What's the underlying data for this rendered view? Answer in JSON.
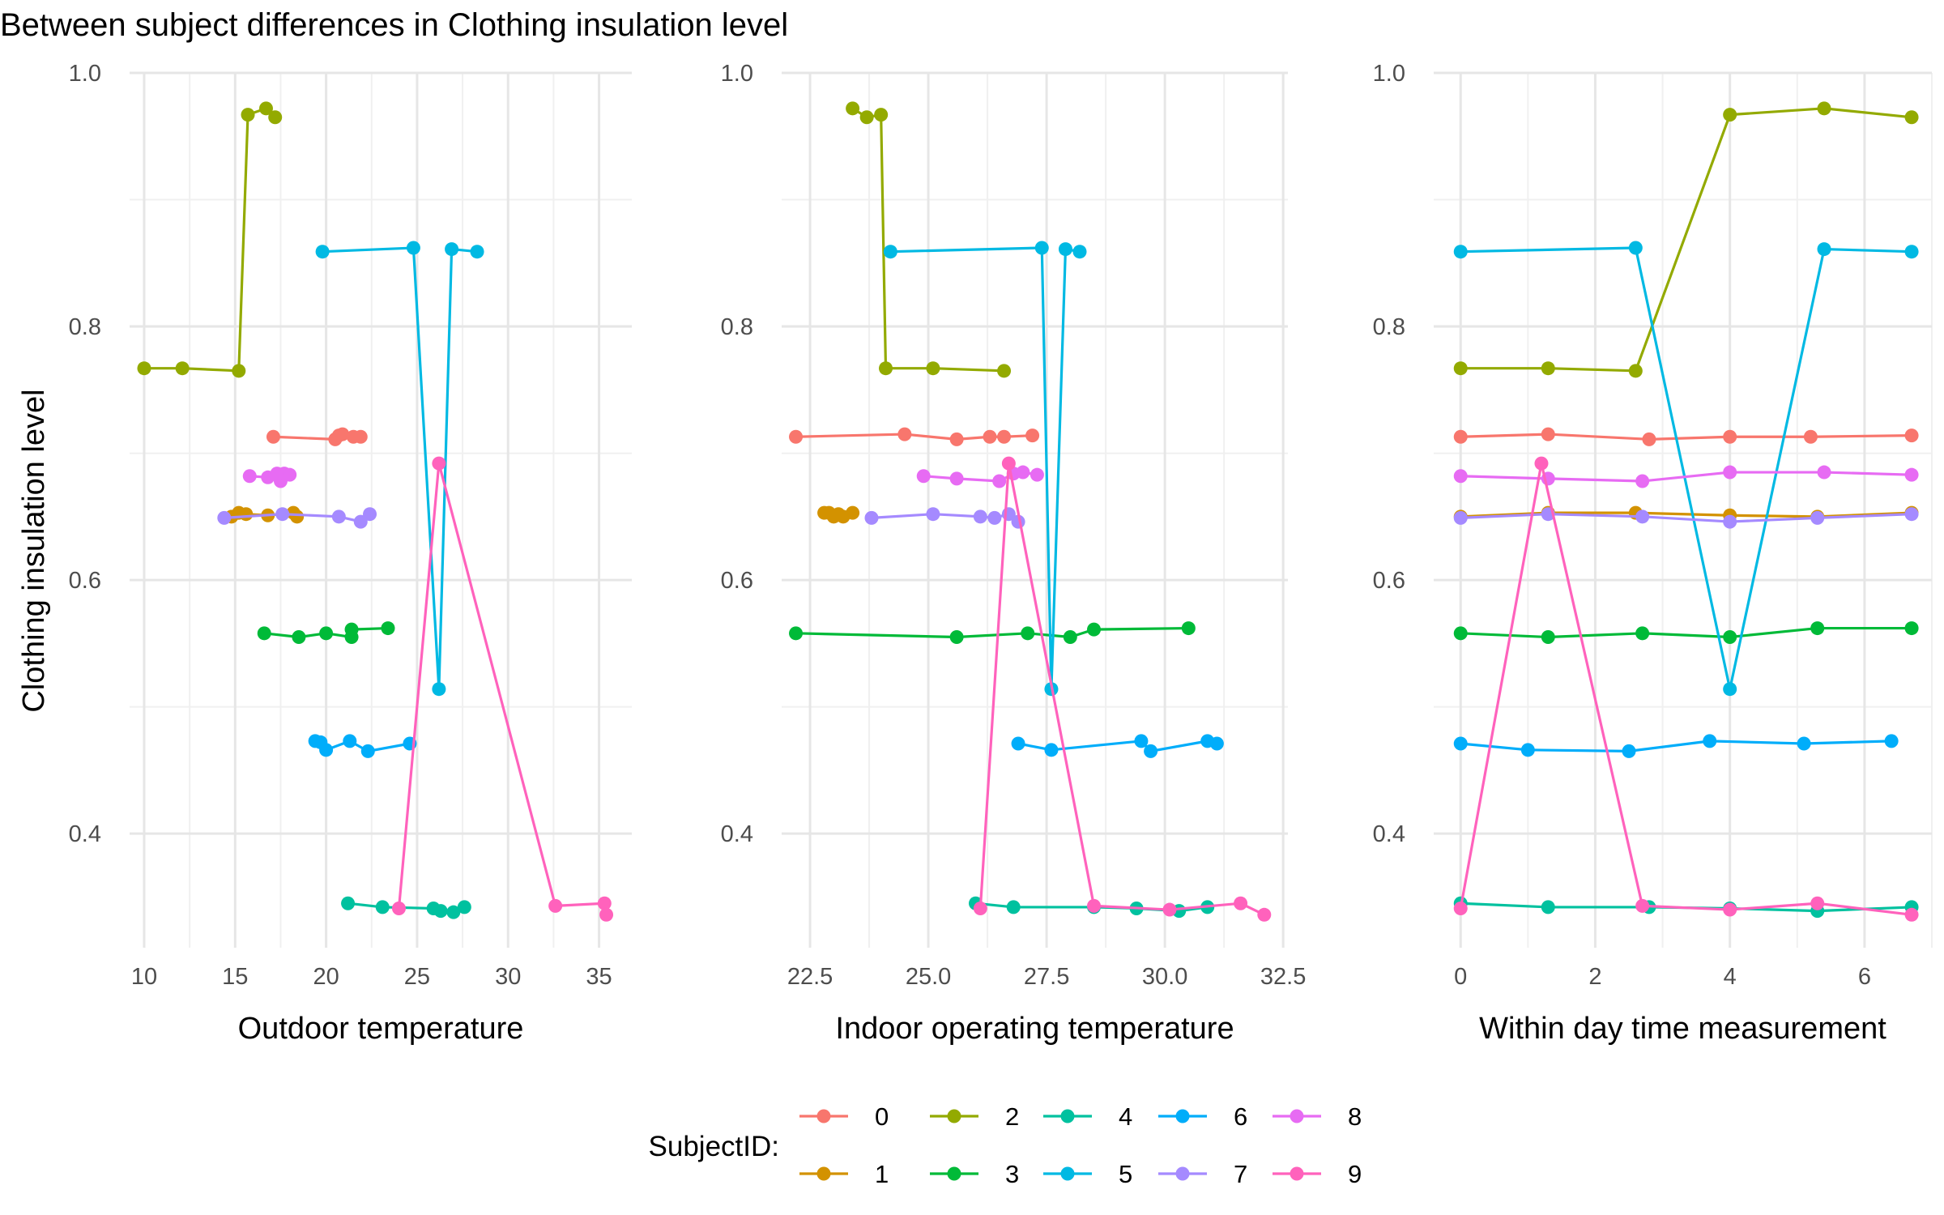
{
  "title": "Between subject differences in Clothing insulation level",
  "chart_data": [
    {
      "type": "line",
      "xlabel": "Outdoor temperature",
      "ylabel": "Clothing insulation level",
      "xlim": [
        9.2,
        36.8
      ],
      "ylim": [
        0.31,
        1.0
      ],
      "xticks": [
        10,
        15,
        20,
        25,
        30,
        35
      ],
      "xtick_labels": [
        "10",
        "15",
        "20",
        "25",
        "30",
        "35"
      ],
      "yticks": [
        0.4,
        0.6,
        0.8,
        1.0
      ],
      "ytick_labels": [
        "0.4",
        "0.6",
        "0.8",
        "1.0"
      ],
      "grid": true,
      "series": [
        {
          "name": "0",
          "color": "#F8766D",
          "x": [
            17.1,
            20.5,
            20.7,
            20.9,
            21.5,
            21.9
          ],
          "y": [
            0.713,
            0.711,
            0.714,
            0.715,
            0.713,
            0.713
          ]
        },
        {
          "name": "1",
          "color": "#D39200",
          "x": [
            14.8,
            15.2,
            15.6,
            16.8,
            18.2,
            18.4
          ],
          "y": [
            0.65,
            0.653,
            0.652,
            0.651,
            0.653,
            0.65
          ]
        },
        {
          "name": "2",
          "color": "#93AA00",
          "x": [
            10.0,
            12.1,
            15.2,
            15.7,
            16.7,
            17.2
          ],
          "y": [
            0.767,
            0.767,
            0.765,
            0.967,
            0.972,
            0.965
          ]
        },
        {
          "name": "3",
          "color": "#00BA38",
          "x": [
            16.6,
            18.5,
            20.0,
            21.4,
            21.4,
            23.4
          ],
          "y": [
            0.558,
            0.555,
            0.558,
            0.555,
            0.561,
            0.562
          ]
        },
        {
          "name": "4",
          "color": "#00C19F",
          "x": [
            21.2,
            23.1,
            25.9,
            26.3,
            27.0,
            27.6
          ],
          "y": [
            0.345,
            0.342,
            0.341,
            0.339,
            0.338,
            0.342
          ]
        },
        {
          "name": "5",
          "color": "#00B9E3",
          "x": [
            19.8,
            24.8,
            26.2,
            26.9,
            28.3
          ],
          "y": [
            0.859,
            0.862,
            0.514,
            0.861,
            0.859
          ]
        },
        {
          "name": "6",
          "color": "#00ADFA",
          "x": [
            19.4,
            19.7,
            20.0,
            21.3,
            22.3,
            24.6
          ],
          "y": [
            0.473,
            0.472,
            0.466,
            0.473,
            0.465,
            0.471
          ]
        },
        {
          "name": "7",
          "color": "#A58AFF",
          "x": [
            14.4,
            17.6,
            20.7,
            21.9,
            22.4
          ],
          "y": [
            0.649,
            0.652,
            0.65,
            0.646,
            0.652
          ]
        },
        {
          "name": "8",
          "color": "#E76BF3",
          "x": [
            15.8,
            16.8,
            17.3,
            17.5,
            17.7,
            18.0
          ],
          "y": [
            0.682,
            0.681,
            0.684,
            0.678,
            0.684,
            0.683
          ]
        },
        {
          "name": "9",
          "color": "#FF62BC",
          "x": [
            24.0,
            26.2,
            32.6,
            35.3,
            35.4
          ],
          "y": [
            0.341,
            0.692,
            0.343,
            0.345,
            0.336
          ]
        }
      ]
    },
    {
      "type": "line",
      "xlabel": "Indoor operating temperature",
      "ylabel": "",
      "xlim": [
        21.9,
        32.6
      ],
      "ylim": [
        0.31,
        1.0
      ],
      "xticks": [
        22.5,
        25.0,
        27.5,
        30.0,
        32.5
      ],
      "xtick_labels": [
        "22.5",
        "25.0",
        "27.5",
        "30.0",
        "32.5"
      ],
      "yticks": [
        0.4,
        0.6,
        0.8,
        1.0
      ],
      "ytick_labels": [
        "0.4",
        "0.6",
        "0.8",
        "1.0"
      ],
      "grid": true,
      "series": [
        {
          "name": "0",
          "color": "#F8766D",
          "x": [
            22.2,
            24.5,
            25.6,
            26.3,
            26.6,
            27.2
          ],
          "y": [
            0.713,
            0.715,
            0.711,
            0.713,
            0.713,
            0.714
          ]
        },
        {
          "name": "1",
          "color": "#D39200",
          "x": [
            22.8,
            22.9,
            23.0,
            23.1,
            23.2,
            23.4
          ],
          "y": [
            0.653,
            0.653,
            0.65,
            0.652,
            0.65,
            0.653
          ]
        },
        {
          "name": "2",
          "color": "#93AA00",
          "x": [
            23.4,
            23.7,
            24.0,
            24.1,
            25.1,
            26.6
          ],
          "y": [
            0.972,
            0.965,
            0.967,
            0.767,
            0.767,
            0.765
          ]
        },
        {
          "name": "3",
          "color": "#00BA38",
          "x": [
            22.2,
            25.6,
            27.1,
            28.0,
            28.5,
            30.5
          ],
          "y": [
            0.558,
            0.555,
            0.558,
            0.555,
            0.561,
            0.562
          ]
        },
        {
          "name": "4",
          "color": "#00C19F",
          "x": [
            26.0,
            26.8,
            28.5,
            29.4,
            30.3,
            30.9
          ],
          "y": [
            0.345,
            0.342,
            0.342,
            0.341,
            0.339,
            0.342
          ]
        },
        {
          "name": "5",
          "color": "#00B9E3",
          "x": [
            24.2,
            27.4,
            27.6,
            27.9,
            28.2
          ],
          "y": [
            0.859,
            0.862,
            0.514,
            0.861,
            0.859
          ]
        },
        {
          "name": "6",
          "color": "#00ADFA",
          "x": [
            26.9,
            27.6,
            29.5,
            29.7,
            30.9,
            31.1
          ],
          "y": [
            0.471,
            0.466,
            0.473,
            0.465,
            0.473,
            0.471
          ]
        },
        {
          "name": "7",
          "color": "#A58AFF",
          "x": [
            23.8,
            25.1,
            26.1,
            26.4,
            26.7,
            26.9
          ],
          "y": [
            0.649,
            0.652,
            0.65,
            0.649,
            0.652,
            0.646
          ]
        },
        {
          "name": "8",
          "color": "#E76BF3",
          "x": [
            24.9,
            25.6,
            26.5,
            26.8,
            27.0,
            27.3
          ],
          "y": [
            0.682,
            0.68,
            0.678,
            0.684,
            0.685,
            0.683
          ]
        },
        {
          "name": "9",
          "color": "#FF62BC",
          "x": [
            26.1,
            26.7,
            28.5,
            30.1,
            31.6,
            32.1
          ],
          "y": [
            0.341,
            0.692,
            0.343,
            0.34,
            0.345,
            0.336
          ]
        }
      ]
    },
    {
      "type": "line",
      "xlabel": "Within day time measurement",
      "ylabel": "",
      "xlim": [
        -0.4,
        7.0
      ],
      "ylim": [
        0.31,
        1.0
      ],
      "xticks": [
        0,
        2,
        4,
        6
      ],
      "xtick_labels": [
        "0",
        "2",
        "4",
        "6"
      ],
      "yticks": [
        0.4,
        0.6,
        0.8,
        1.0
      ],
      "ytick_labels": [
        "0.4",
        "0.6",
        "0.8",
        "1.0"
      ],
      "grid": true,
      "series": [
        {
          "name": "0",
          "color": "#F8766D",
          "x": [
            0.0,
            1.3,
            2.8,
            4.0,
            5.2,
            6.7
          ],
          "y": [
            0.713,
            0.715,
            0.711,
            0.713,
            0.713,
            0.714
          ]
        },
        {
          "name": "1",
          "color": "#D39200",
          "x": [
            0.0,
            1.3,
            2.6,
            4.0,
            5.3,
            6.7
          ],
          "y": [
            0.65,
            0.653,
            0.653,
            0.651,
            0.65,
            0.653
          ]
        },
        {
          "name": "2",
          "color": "#93AA00",
          "x": [
            0.0,
            1.3,
            2.6,
            4.0,
            5.4,
            6.7
          ],
          "y": [
            0.767,
            0.767,
            0.765,
            0.967,
            0.972,
            0.965
          ]
        },
        {
          "name": "3",
          "color": "#00BA38",
          "x": [
            0.0,
            1.3,
            2.7,
            4.0,
            5.3,
            6.7
          ],
          "y": [
            0.558,
            0.555,
            0.558,
            0.555,
            0.562,
            0.562
          ]
        },
        {
          "name": "4",
          "color": "#00C19F",
          "x": [
            0.0,
            1.3,
            2.8,
            4.0,
            5.3,
            6.7
          ],
          "y": [
            0.345,
            0.342,
            0.342,
            0.341,
            0.339,
            0.342
          ]
        },
        {
          "name": "5",
          "color": "#00B9E3",
          "x": [
            0.0,
            2.6,
            4.0,
            5.4,
            6.7
          ],
          "y": [
            0.859,
            0.862,
            0.514,
            0.861,
            0.859
          ]
        },
        {
          "name": "6",
          "color": "#00ADFA",
          "x": [
            0.0,
            1.0,
            2.5,
            3.7,
            5.1,
            6.4
          ],
          "y": [
            0.471,
            0.466,
            0.465,
            0.473,
            0.471,
            0.473
          ]
        },
        {
          "name": "7",
          "color": "#A58AFF",
          "x": [
            0.0,
            1.3,
            2.7,
            4.0,
            5.3,
            6.7
          ],
          "y": [
            0.649,
            0.652,
            0.65,
            0.646,
            0.649,
            0.652
          ]
        },
        {
          "name": "8",
          "color": "#E76BF3",
          "x": [
            0.0,
            1.3,
            2.7,
            4.0,
            5.4,
            6.7
          ],
          "y": [
            0.682,
            0.68,
            0.678,
            0.685,
            0.685,
            0.683
          ]
        },
        {
          "name": "9",
          "color": "#FF62BC",
          "x": [
            0.0,
            1.2,
            2.7,
            4.0,
            5.3,
            6.7
          ],
          "y": [
            0.341,
            0.692,
            0.343,
            0.34,
            0.345,
            0.336
          ]
        }
      ]
    }
  ],
  "legend": {
    "title": "SubjectID:",
    "placement": "bottom",
    "items": [
      {
        "label": "0",
        "color": "#F8766D"
      },
      {
        "label": "1",
        "color": "#D39200"
      },
      {
        "label": "2",
        "color": "#93AA00"
      },
      {
        "label": "3",
        "color": "#00BA38"
      },
      {
        "label": "4",
        "color": "#00C19F"
      },
      {
        "label": "5",
        "color": "#00B9E3"
      },
      {
        "label": "6",
        "color": "#00ADFA"
      },
      {
        "label": "7",
        "color": "#A58AFF"
      },
      {
        "label": "8",
        "color": "#E76BF3"
      },
      {
        "label": "9",
        "color": "#FF62BC"
      }
    ]
  }
}
